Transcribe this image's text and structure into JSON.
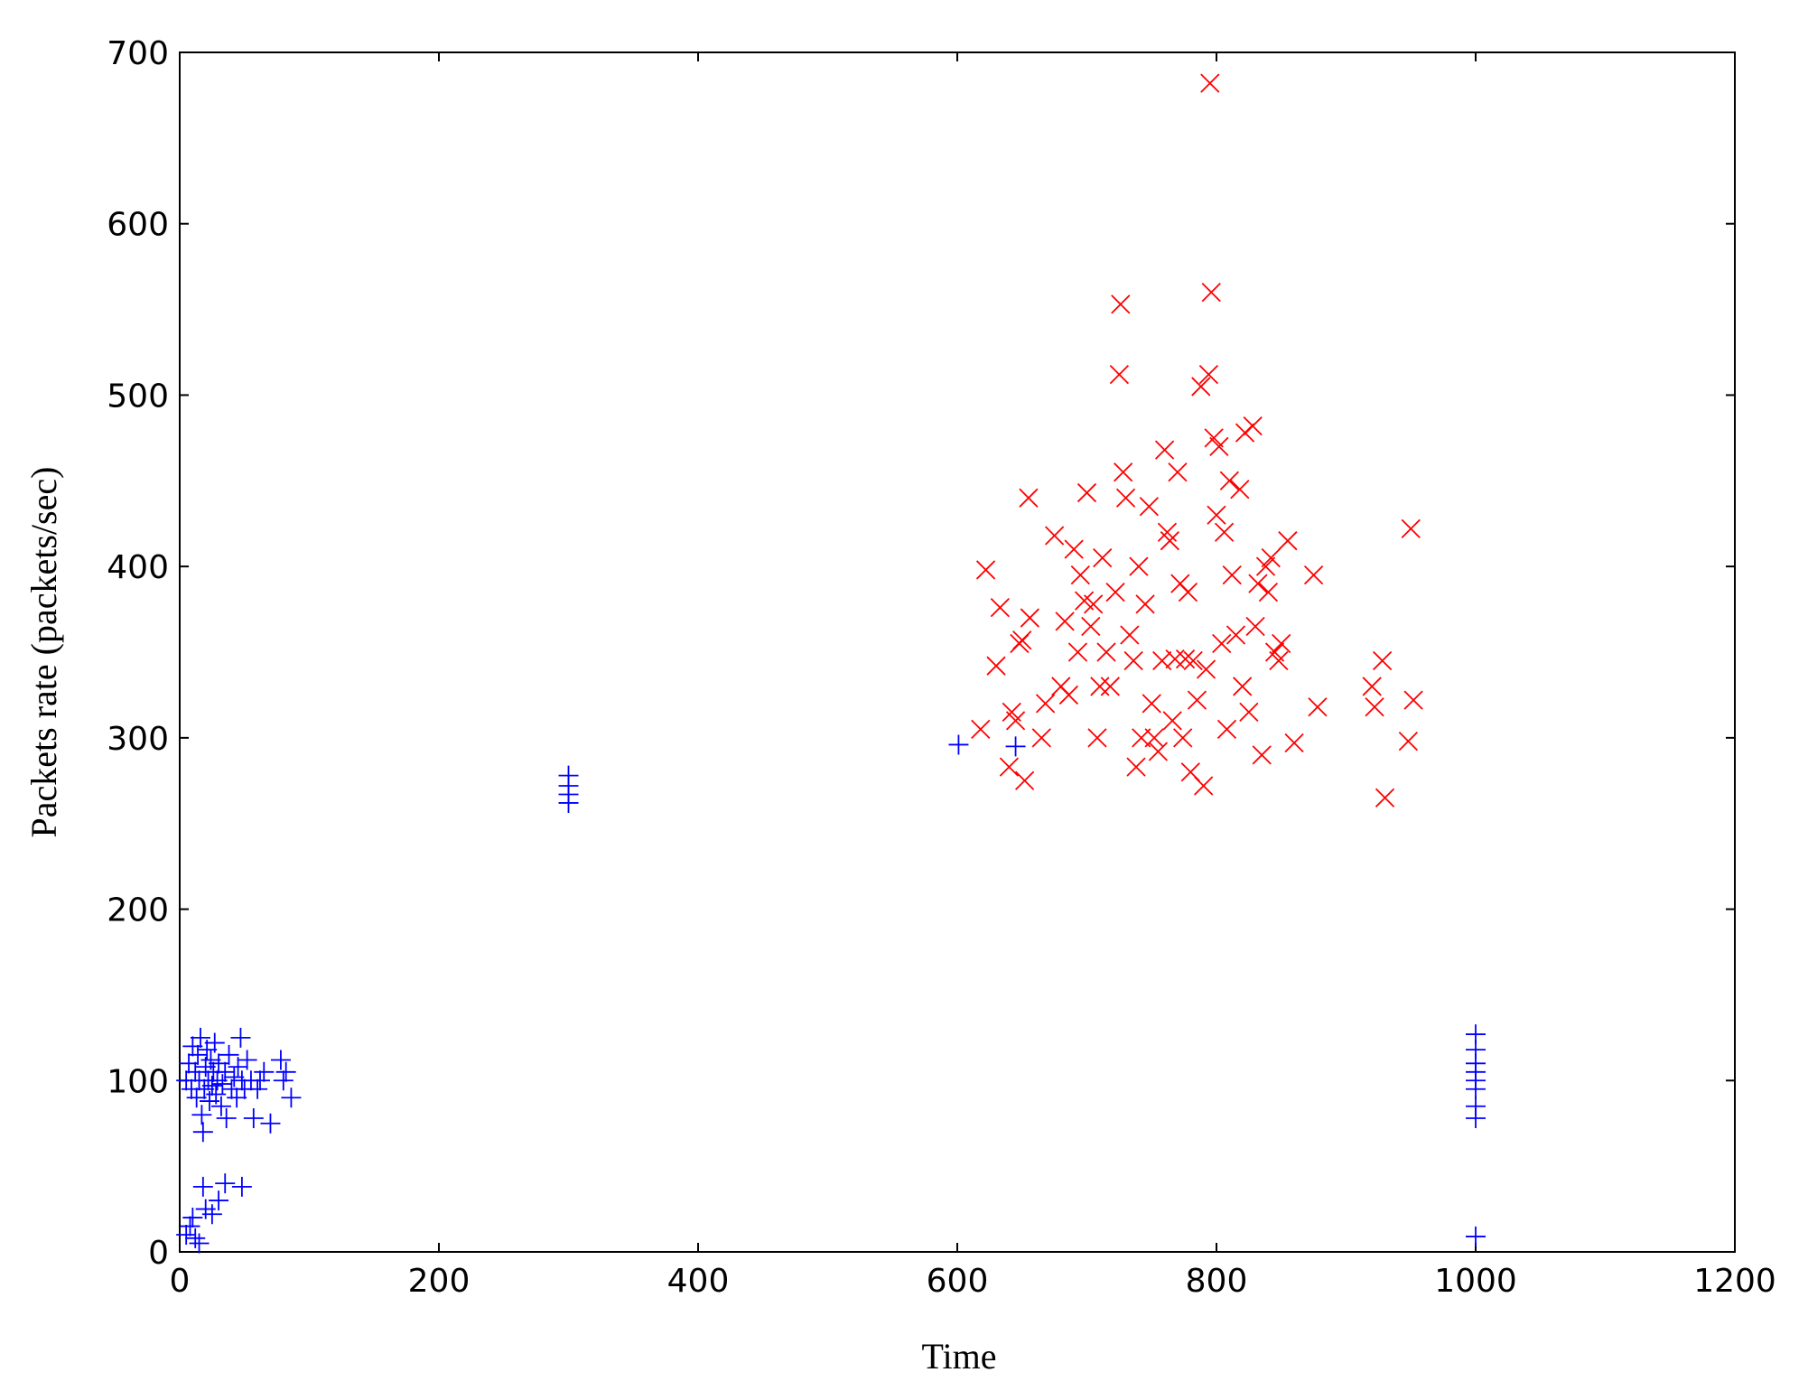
{
  "chart_data": {
    "type": "scatter",
    "xlabel": "Time",
    "ylabel": "Packets rate (packets/sec)",
    "xlim": [
      0,
      1200
    ],
    "ylim": [
      0,
      700
    ],
    "xticks": [
      0,
      200,
      400,
      600,
      800,
      1000,
      1200
    ],
    "yticks": [
      0,
      100,
      200,
      300,
      400,
      500,
      600,
      700
    ],
    "grid": false,
    "series": [
      {
        "color": "#0000ff",
        "marker": "+",
        "x": [
          5,
          7,
          9,
          10,
          12,
          13,
          14,
          15,
          16,
          17,
          18,
          19,
          20,
          21,
          22,
          23,
          24,
          25,
          26,
          27,
          28,
          29,
          30,
          32,
          33,
          35,
          36,
          38,
          40,
          42,
          44,
          45,
          47,
          48,
          50,
          52,
          55,
          57,
          60,
          62,
          65,
          70,
          78,
          80,
          82,
          86,
          5,
          8,
          10,
          12,
          15,
          18,
          20,
          25,
          30,
          35,
          48,
          300,
          300,
          300,
          300,
          601,
          645,
          1000,
          1000,
          1000,
          1000,
          1000,
          1000,
          1000,
          1000,
          1000
        ],
        "values": [
          100,
          110,
          95,
          120,
          105,
          90,
          115,
          100,
          125,
          80,
          70,
          95,
          108,
          118,
          100,
          88,
          112,
          97,
          105,
          122,
          92,
          100,
          110,
          85,
          98,
          105,
          78,
          115,
          95,
          102,
          90,
          108,
          125,
          100,
          95,
          112,
          100,
          78,
          95,
          100,
          105,
          75,
          112,
          100,
          105,
          90,
          10,
          15,
          20,
          8,
          5,
          38,
          25,
          22,
          30,
          40,
          38,
          262,
          267,
          272,
          278,
          296,
          295,
          78,
          85,
          95,
          100,
          105,
          110,
          118,
          127,
          9
        ]
      },
      {
        "color": "#ff0000",
        "marker": "x",
        "x": [
          618,
          622,
          630,
          633,
          640,
          642,
          645,
          648,
          650,
          652,
          655,
          656,
          665,
          668,
          675,
          680,
          683,
          686,
          690,
          693,
          695,
          698,
          700,
          703,
          705,
          708,
          710,
          712,
          715,
          718,
          722,
          725,
          726,
          728,
          730,
          733,
          736,
          738,
          740,
          742,
          745,
          748,
          750,
          752,
          755,
          758,
          760,
          762,
          764,
          766,
          768,
          770,
          772,
          774,
          776,
          778,
          780,
          782,
          785,
          788,
          790,
          792,
          794,
          795,
          796,
          798,
          800,
          802,
          804,
          806,
          808,
          810,
          812,
          815,
          818,
          820,
          822,
          825,
          828,
          830,
          832,
          835,
          838,
          840,
          842,
          845,
          848,
          850,
          855,
          860,
          875,
          878,
          920,
          922,
          928,
          930,
          948,
          950,
          952
        ],
        "values": [
          305,
          398,
          342,
          376,
          283,
          315,
          310,
          355,
          357,
          275,
          440,
          370,
          300,
          320,
          418,
          330,
          368,
          325,
          410,
          350,
          395,
          380,
          443,
          365,
          378,
          300,
          330,
          405,
          350,
          330,
          385,
          512,
          553,
          455,
          440,
          360,
          345,
          283,
          400,
          300,
          378,
          435,
          320,
          300,
          292,
          345,
          468,
          420,
          415,
          310,
          346,
          455,
          390,
          300,
          346,
          385,
          280,
          345,
          322,
          505,
          272,
          340,
          512,
          682,
          560,
          475,
          430,
          470,
          355,
          420,
          305,
          450,
          395,
          360,
          445,
          330,
          478,
          315,
          482,
          365,
          390,
          290,
          400,
          385,
          405,
          350,
          345,
          355,
          415,
          297,
          395,
          318,
          330,
          318,
          345,
          265,
          298,
          422,
          322
        ]
      }
    ]
  }
}
